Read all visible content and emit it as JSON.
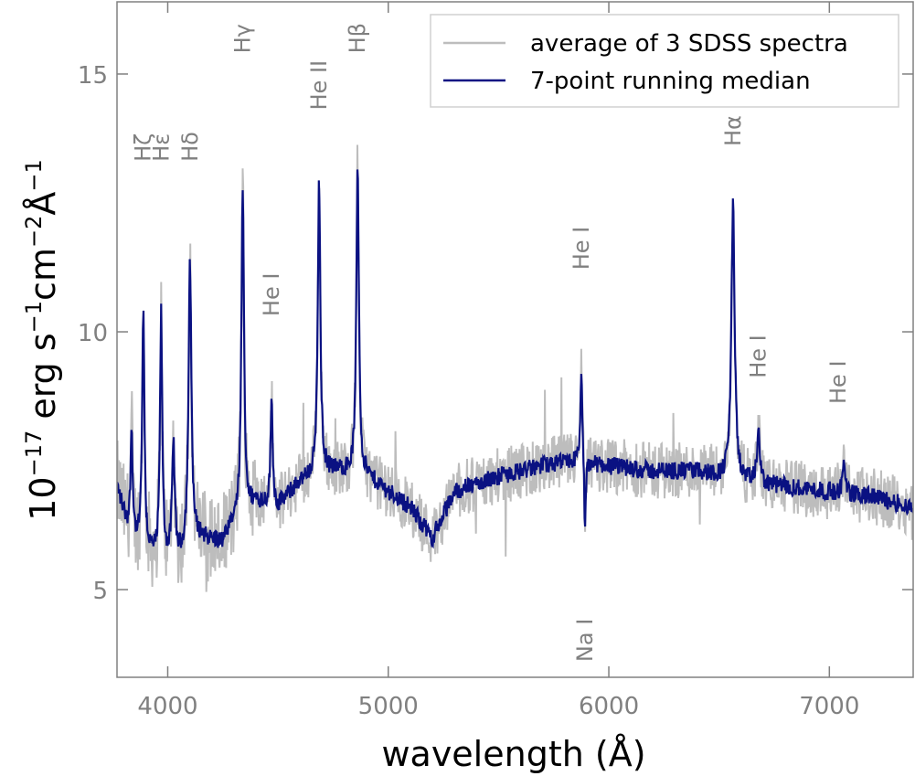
{
  "chart_data": {
    "type": "line",
    "xlabel": "wavelength (Å)",
    "ylabel_parts": [
      "10",
      "−17",
      " erg s",
      "−1",
      "cm",
      "−2",
      "Å",
      "−1"
    ],
    "xlim": [
      3770,
      7380
    ],
    "ylim": [
      3.3,
      16.4
    ],
    "xticks": [
      4000,
      5000,
      6000,
      7000
    ],
    "yticks": [
      5,
      10,
      15
    ],
    "xtick_labels": [
      "4000",
      "5000",
      "6000",
      "7000"
    ],
    "ytick_labels": [
      "5",
      "10",
      "15"
    ],
    "grid": false,
    "legend_position": "top-right",
    "colors": {
      "raw": "#bdbdbd",
      "median": "#0a1182",
      "axis": "#808080",
      "label": "#808080"
    },
    "series": [
      {
        "name": "average of 3 SDSS spectra",
        "role": "raw"
      },
      {
        "name": "7-point running median",
        "role": "median",
        "baseline": [
          [
            3770,
            7.0
          ],
          [
            3830,
            6.0
          ],
          [
            3950,
            5.6
          ],
          [
            4050,
            5.6
          ],
          [
            4150,
            6.0
          ],
          [
            4250,
            5.9
          ],
          [
            4300,
            6.3
          ],
          [
            4400,
            6.7
          ],
          [
            4500,
            6.6
          ],
          [
            4600,
            7.1
          ],
          [
            4700,
            7.3
          ],
          [
            4800,
            7.3
          ],
          [
            4900,
            7.2
          ],
          [
            5000,
            6.9
          ],
          [
            5100,
            6.6
          ],
          [
            5200,
            6.0
          ],
          [
            5300,
            6.9
          ],
          [
            5500,
            7.2
          ],
          [
            5700,
            7.4
          ],
          [
            5850,
            7.5
          ],
          [
            6000,
            7.4
          ],
          [
            6200,
            7.3
          ],
          [
            6400,
            7.3
          ],
          [
            6600,
            7.1
          ],
          [
            6800,
            7.0
          ],
          [
            7000,
            6.9
          ],
          [
            7200,
            6.8
          ],
          [
            7380,
            6.6
          ]
        ],
        "features": [
          {
            "x": 3836,
            "amp": 2.1,
            "w": 6
          },
          {
            "x": 3889,
            "amp": 4.5,
            "w": 6
          },
          {
            "x": 3970,
            "amp": 4.7,
            "w": 6
          },
          {
            "x": 4026,
            "amp": 2.2,
            "w": 7
          },
          {
            "x": 4101,
            "amp": 5.5,
            "w": 8
          },
          {
            "x": 4340,
            "amp": 6.3,
            "w": 7
          },
          {
            "x": 4471,
            "amp": 2.0,
            "w": 6
          },
          {
            "x": 4686,
            "amp": 5.6,
            "w": 7
          },
          {
            "x": 4861,
            "amp": 6.0,
            "w": 7
          },
          {
            "x": 5876,
            "amp": 1.9,
            "w": 5
          },
          {
            "x": 5892,
            "amp": -1.6,
            "w": 4
          },
          {
            "x": 6563,
            "amp": 5.3,
            "w": 9
          },
          {
            "x": 6678,
            "amp": 1.1,
            "w": 7
          },
          {
            "x": 7065,
            "amp": 0.6,
            "w": 7
          }
        ]
      }
    ],
    "line_labels": [
      {
        "text": "Hζ",
        "x": 3889,
        "y": 13.3
      },
      {
        "text": "Hε",
        "x": 3970,
        "y": 13.3
      },
      {
        "text": "Hδ",
        "x": 4101,
        "y": 13.3
      },
      {
        "text": "Hγ",
        "x": 4340,
        "y": 15.4
      },
      {
        "text": "He I",
        "x": 4471,
        "y": 10.3
      },
      {
        "text": "He II",
        "x": 4686,
        "y": 14.3
      },
      {
        "text": "Hβ",
        "x": 4861,
        "y": 15.4
      },
      {
        "text": "He I",
        "x": 5876,
        "y": 11.2
      },
      {
        "text": "Na I",
        "x": 5892,
        "y": 3.6
      },
      {
        "text": "Hα",
        "x": 6563,
        "y": 13.6
      },
      {
        "text": "He I",
        "x": 6678,
        "y": 9.1
      },
      {
        "text": "He I",
        "x": 7040,
        "y": 8.6
      }
    ]
  }
}
